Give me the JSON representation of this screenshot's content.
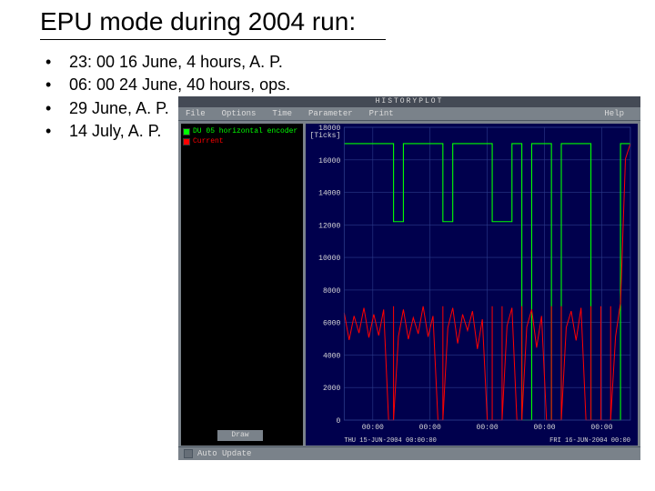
{
  "title": "EPU mode during 2004 run:",
  "bullets": [
    "23: 00 16 June, 4 hours, A. P.",
    "06: 00 24 June, 40 hours, ops.",
    "29 June, A. P.",
    "14 July, A. P."
  ],
  "app": {
    "window_title": "HISTORYPLOT",
    "menu": [
      "File",
      "Options",
      "Time",
      "Parameter",
      "Print"
    ],
    "menu_right": "Help",
    "legend": [
      {
        "color": "#00ff00",
        "label": "DU 05 horizontal encoder"
      },
      {
        "color": "#ff0000",
        "label": "Current"
      }
    ],
    "draw_button": "Draw",
    "auto_update_label": "Auto Update",
    "colors": {
      "panel_bg": "#7a828a",
      "plot_bg": "#00004d",
      "legend_bg": "#000000",
      "grid": "#2b3a8a",
      "axis_text": "#d8d8d8",
      "series_green": "#00ff00",
      "series_red": "#ff0000"
    },
    "chart": {
      "type": "timeseries-line",
      "y_unit": "[Ticks]",
      "ylim": [
        0,
        18000
      ],
      "yticks": [
        0,
        2000,
        4000,
        6000,
        8000,
        10000,
        12000,
        14000,
        16000,
        18000
      ],
      "x_labels": [
        "00:00",
        "00:00",
        "00:00",
        "00:00",
        "00:00"
      ],
      "x_bottom_left": "THU  15-JUN-2004  00:00:00",
      "x_bottom_right": "FRI  16-JUN-2004  00:00",
      "green_series_y": [
        17000,
        17000,
        17000,
        17000,
        17000,
        12200,
        17000,
        17000,
        17000,
        17000,
        12200,
        17000,
        17000,
        17000,
        17000,
        12200,
        12200,
        17000,
        0,
        17000,
        17000,
        0,
        17000,
        17000,
        17000,
        0,
        0,
        0,
        17000,
        17000
      ],
      "red_series_y": [
        6600,
        6400,
        6900,
        6500,
        6800,
        0,
        6800,
        6300,
        7000,
        6400,
        0,
        6900,
        6500,
        6700,
        6200,
        0,
        0,
        6900,
        0,
        6800,
        6400,
        0,
        0,
        6700,
        6900,
        0,
        0,
        0,
        7200,
        17000
      ]
    }
  }
}
